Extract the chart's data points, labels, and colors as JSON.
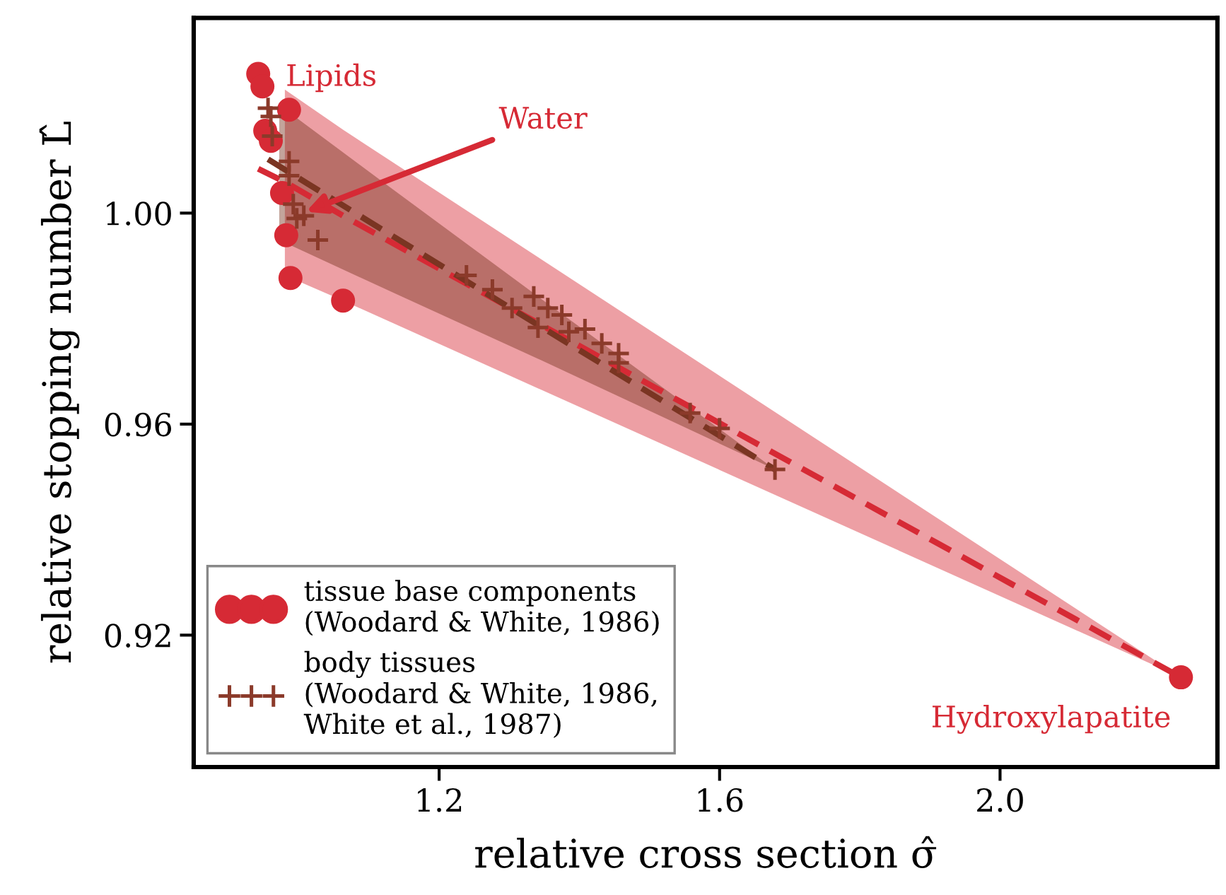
{
  "chart_data": {
    "type": "scatter",
    "xlabel": "relative cross section σ̂",
    "ylabel": "relative stopping number L̂",
    "xlim": [
      0.85,
      2.31
    ],
    "ylim": [
      0.895,
      1.037
    ],
    "xticks": [
      1.2,
      1.6,
      {
        "value": 2.0,
        "label": "2.0"
      }
    ],
    "yticks": [
      0.92,
      0.96,
      {
        "value": 1.0,
        "label": "1.00"
      }
    ],
    "grid": false,
    "legend": "bottom left",
    "series": [
      {
        "type": "line",
        "color": "#d62a35",
        "line_style": "dashed",
        "marker": "none",
        "x": [
          0.942,
          0.98,
          1.063,
          2.258
        ],
        "values": [
          1.0084,
          1.0059,
          0.9995,
          0.912
        ],
        "lower": [
          null,
          0.9882,
          0.9834,
          0.912
        ],
        "upper": [
          null,
          1.0234,
          1.0158,
          0.912
        ]
      },
      {
        "type": "line",
        "color": "#7a3522",
        "line_style": "dashed",
        "marker": "none",
        "x": [
          0.956,
          0.972,
          1.138,
          1.341,
          1.679
        ],
        "values": [
          1.0102,
          1.0089,
          0.9953,
          0.9788,
          0.9514
        ],
        "lower": [
          null,
          0.9949,
          0.9847,
          0.9724,
          0.9514
        ],
        "upper": [
          null,
          1.0205,
          1.0041,
          0.9842,
          0.9514
        ]
      },
      {
        "name": "tissue base components\n(Woodard & White, 1986)",
        "color": "#d62a35",
        "marker": "circle",
        "x": [
          0.942,
          0.948,
          0.986,
          0.952,
          0.96,
          0.976,
          0.982,
          0.988,
          1.063,
          2.258
        ],
        "values": [
          1.0264,
          1.024,
          1.0196,
          1.0156,
          1.0137,
          1.0038,
          0.9958,
          0.9877,
          0.9834,
          0.912
        ]
      },
      {
        "name": "body tissues\n(Woodard & White, 1986,\nWhite et al., 1987)",
        "color": "#8b3a2a",
        "marker": "cross",
        "x": [
          0.956,
          0.96,
          0.962,
          0.986,
          0.986,
          0.992,
          0.997,
          1.007,
          1.027,
          1.239,
          1.276,
          1.304,
          1.335,
          1.341,
          1.355,
          1.375,
          1.385,
          1.408,
          1.432,
          1.456,
          1.456,
          1.558,
          1.6,
          1.679
        ],
        "values": [
          1.0199,
          1.0183,
          1.0146,
          1.0098,
          1.0071,
          1.0017,
          0.999,
          0.9995,
          0.9949,
          0.9882,
          0.9855,
          0.982,
          0.9842,
          0.9783,
          0.982,
          0.9807,
          0.9775,
          0.978,
          0.9753,
          0.9734,
          0.9716,
          0.9621,
          0.9592,
          0.9514
        ]
      }
    ],
    "annotations": [
      {
        "text": "Lipids",
        "x": 0.942,
        "y": 1.0264
      },
      {
        "text": "Water",
        "x": 1.005,
        "y": 1.0
      },
      {
        "text": "Hydroxylapatite",
        "x": 2.258,
        "y": 0.912
      }
    ]
  }
}
